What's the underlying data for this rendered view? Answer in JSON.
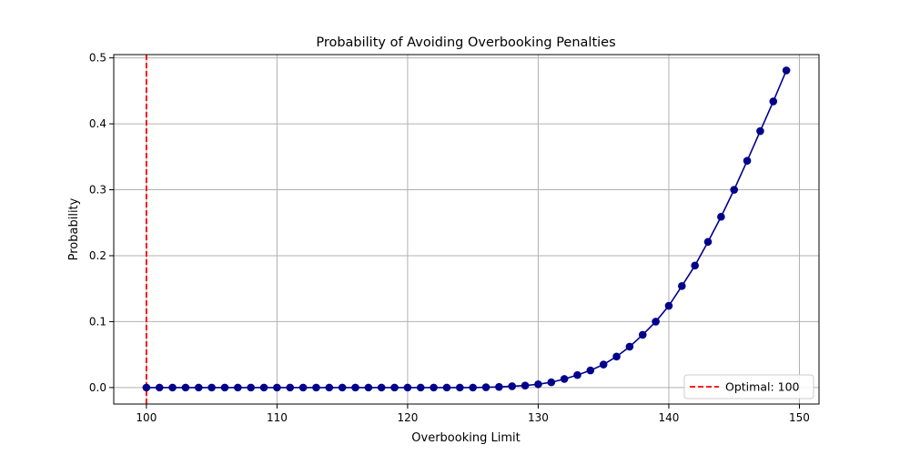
{
  "chart_data": {
    "type": "line",
    "title": "Probability of Avoiding Overbooking Penalties",
    "xlabel": "Overbooking Limit",
    "ylabel": "Probability",
    "xlim": [
      97.5,
      151.5
    ],
    "ylim": [
      -0.025,
      0.505
    ],
    "xticks": [
      100,
      110,
      120,
      130,
      140,
      150
    ],
    "xtick_labels": [
      "100",
      "110",
      "120",
      "130",
      "140",
      "150"
    ],
    "yticks": [
      0.0,
      0.1,
      0.2,
      0.3,
      0.4,
      0.5
    ],
    "ytick_labels": [
      "0.0",
      "0.1",
      "0.2",
      "0.3",
      "0.4",
      "0.5"
    ],
    "grid": true,
    "legend_position": "bottom-right",
    "series": [
      {
        "color": "#00008b",
        "marker": "circle",
        "x": [
          100,
          101,
          102,
          103,
          104,
          105,
          106,
          107,
          108,
          109,
          110,
          111,
          112,
          113,
          114,
          115,
          116,
          117,
          118,
          119,
          120,
          121,
          122,
          123,
          124,
          125,
          126,
          127,
          128,
          129,
          130,
          131,
          132,
          133,
          134,
          135,
          136,
          137,
          138,
          139,
          140,
          141,
          142,
          143,
          144,
          145,
          146,
          147,
          148,
          149
        ],
        "y": [
          0.0,
          0.0,
          0.0,
          0.0,
          0.0,
          0.0,
          0.0,
          0.0,
          0.0,
          0.0,
          0.0,
          0.0,
          0.0,
          0.0,
          0.0,
          0.0,
          0.0,
          0.0,
          0.0,
          0.0,
          0.0,
          0.0,
          0.0,
          0.0,
          0.0,
          0.0,
          0.0005,
          0.001,
          0.002,
          0.003,
          0.005,
          0.008,
          0.013,
          0.019,
          0.026,
          0.035,
          0.047,
          0.062,
          0.08,
          0.1,
          0.124,
          0.154,
          0.185,
          0.221,
          0.259,
          0.3,
          0.344,
          0.389,
          0.434,
          0.481
        ]
      }
    ],
    "reference_lines": [
      {
        "orientation": "vertical",
        "x": 100,
        "color": "#ff0000",
        "style": "dashed",
        "label": "Optimal: 100"
      }
    ]
  }
}
